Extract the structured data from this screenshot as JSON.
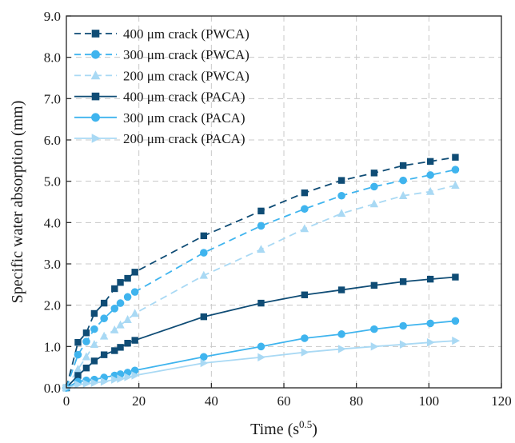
{
  "chart_data": {
    "type": "line",
    "xlabel": "Time (s",
    "xlabel_sup": "0.5",
    "xlabel_close": ")",
    "ylabel": "Specific water absorption (mm)",
    "xlim": [
      0,
      120
    ],
    "ylim": [
      0,
      9
    ],
    "x_ticks": [
      "0",
      "20",
      "40",
      "60",
      "80",
      "100",
      "120"
    ],
    "y_ticks": [
      "0.0",
      "1.0",
      "2.0",
      "3.0",
      "4.0",
      "5.0",
      "6.0",
      "7.0",
      "8.0",
      "9.0"
    ],
    "grid": true,
    "legend_position": "top-left",
    "series": [
      {
        "name": "400 μm crack (PWCA)",
        "line": "dashed",
        "marker": "square",
        "color": "#0f4c75",
        "x": [
          0,
          3.2,
          5.5,
          7.7,
          10.4,
          13.3,
          14.9,
          16.9,
          18.9,
          37.9,
          53.7,
          65.7,
          75.9,
          84.9,
          92.9,
          100.4,
          107.3
        ],
        "y": [
          0,
          1.1,
          1.33,
          1.8,
          2.05,
          2.4,
          2.55,
          2.65,
          2.8,
          3.68,
          4.28,
          4.72,
          5.02,
          5.2,
          5.38,
          5.48,
          5.58
        ]
      },
      {
        "name": "300 μm crack (PWCA)",
        "line": "dashed",
        "marker": "circle",
        "color": "#3fb4ee",
        "x": [
          0,
          3.2,
          5.5,
          7.7,
          10.4,
          13.3,
          14.9,
          16.9,
          18.9,
          37.9,
          53.7,
          65.7,
          75.9,
          84.9,
          92.9,
          100.4,
          107.3
        ],
        "y": [
          0,
          0.8,
          1.12,
          1.42,
          1.68,
          1.92,
          2.05,
          2.2,
          2.32,
          3.27,
          3.92,
          4.33,
          4.65,
          4.87,
          5.02,
          5.15,
          5.28
        ]
      },
      {
        "name": "200 μm crack (PWCA)",
        "line": "dashed",
        "marker": "triangle",
        "color": "#a9d9f4",
        "x": [
          0,
          3.2,
          5.5,
          7.7,
          10.4,
          13.3,
          14.9,
          16.9,
          18.9,
          37.9,
          53.7,
          65.7,
          75.9,
          84.9,
          92.9,
          100.4,
          107.3
        ],
        "y": [
          0,
          0.45,
          0.75,
          1.05,
          1.25,
          1.4,
          1.52,
          1.65,
          1.8,
          2.72,
          3.35,
          3.85,
          4.22,
          4.45,
          4.65,
          4.75,
          4.9
        ]
      },
      {
        "name": "400 μm crack (PACA)",
        "line": "solid",
        "marker": "square",
        "color": "#0f4c75",
        "x": [
          0,
          3.2,
          5.5,
          7.7,
          10.4,
          13.3,
          14.9,
          16.9,
          18.9,
          37.9,
          53.7,
          65.7,
          75.9,
          84.9,
          92.9,
          100.4,
          107.3
        ],
        "y": [
          0,
          0.3,
          0.48,
          0.65,
          0.8,
          0.9,
          0.98,
          1.08,
          1.15,
          1.72,
          2.05,
          2.25,
          2.37,
          2.48,
          2.57,
          2.63,
          2.68
        ]
      },
      {
        "name": "300 μm crack (PACA)",
        "line": "solid",
        "marker": "circle",
        "color": "#3fb4ee",
        "x": [
          0,
          3.2,
          5.5,
          7.7,
          10.4,
          13.3,
          14.9,
          16.9,
          18.9,
          37.9,
          53.7,
          65.7,
          75.9,
          84.9,
          92.9,
          100.4,
          107.3
        ],
        "y": [
          0,
          0.15,
          0.18,
          0.2,
          0.25,
          0.3,
          0.33,
          0.37,
          0.42,
          0.75,
          1.0,
          1.2,
          1.3,
          1.42,
          1.5,
          1.56,
          1.62
        ]
      },
      {
        "name": "200 μm crack (PACA)",
        "line": "solid",
        "marker": "triangle-right",
        "color": "#a9d9f4",
        "x": [
          0,
          3.2,
          5.5,
          7.7,
          10.4,
          13.3,
          14.9,
          16.9,
          18.9,
          37.9,
          53.7,
          65.7,
          75.9,
          84.9,
          92.9,
          100.4,
          107.3
        ],
        "y": [
          0,
          0.08,
          0.1,
          0.12,
          0.15,
          0.2,
          0.22,
          0.26,
          0.3,
          0.6,
          0.74,
          0.86,
          0.94,
          1.0,
          1.05,
          1.1,
          1.14
        ]
      }
    ]
  }
}
